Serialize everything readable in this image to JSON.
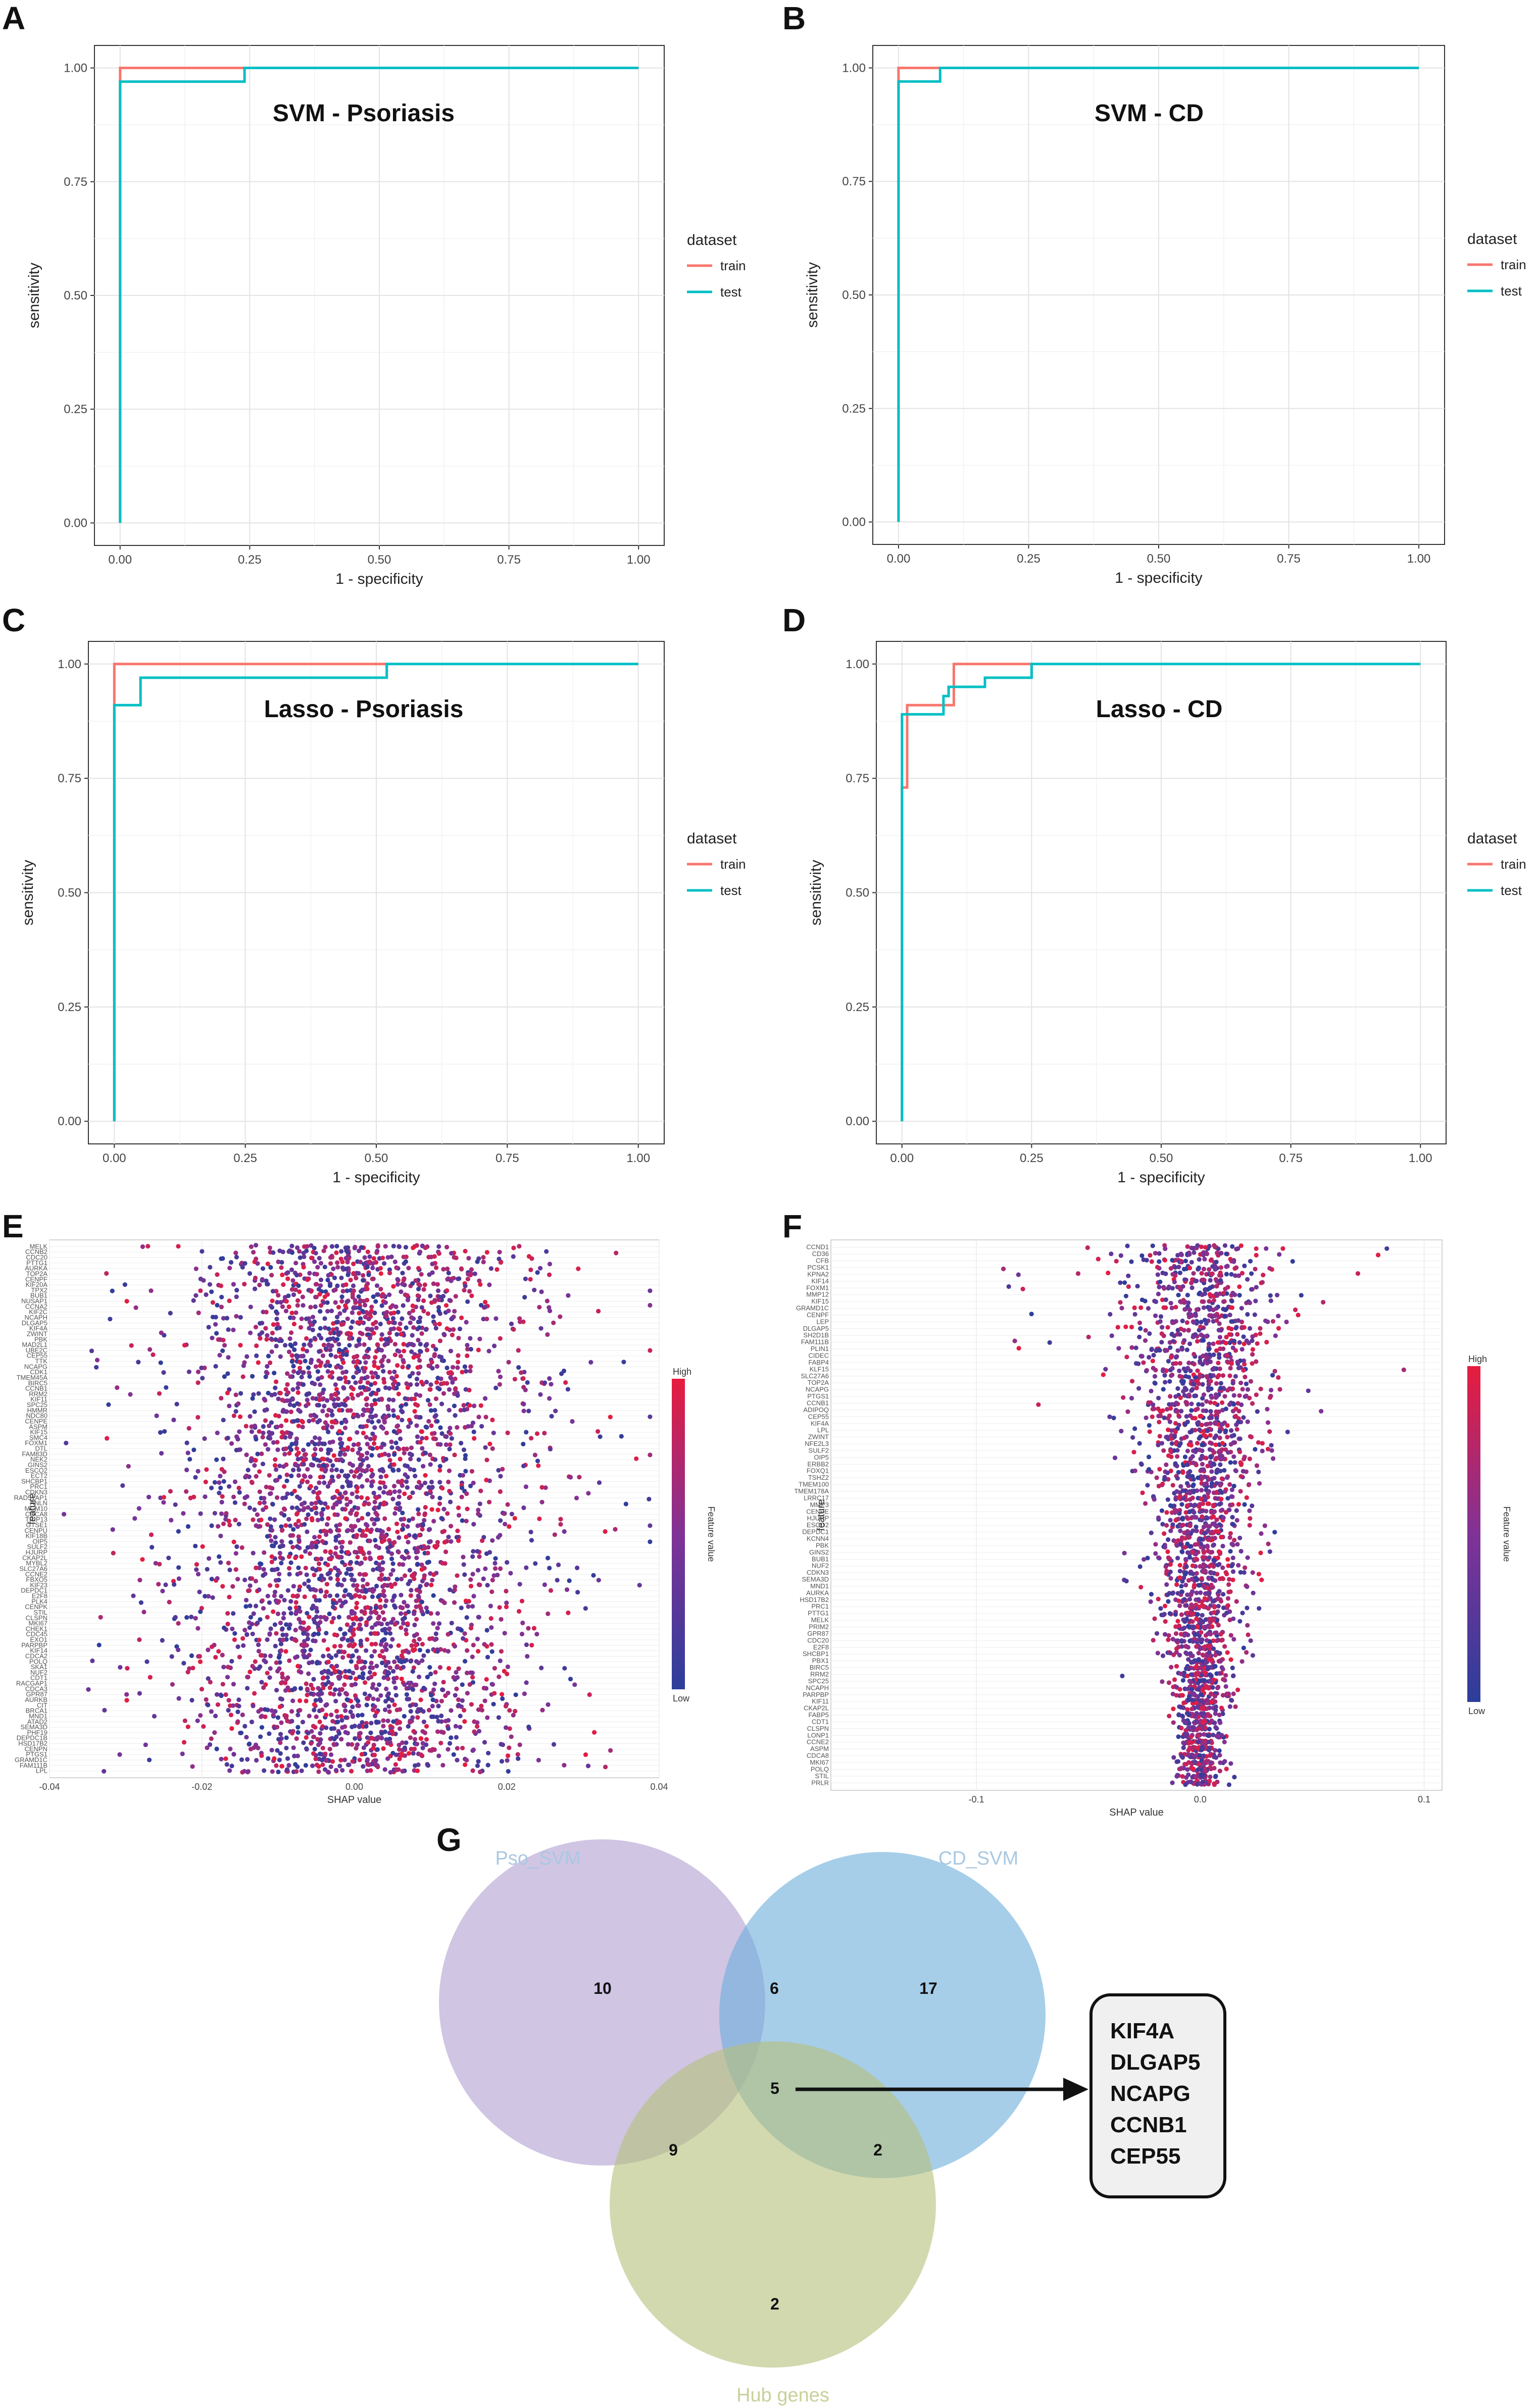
{
  "chart_data": [
    {
      "type": "line",
      "panel": "A",
      "title": "SVM - Psoriasis",
      "xlabel": "1 - specificity",
      "ylabel": "sensitivity",
      "xlim": [
        0,
        1
      ],
      "ylim": [
        0,
        1
      ],
      "xticks": [
        "0.00",
        "0.25",
        "0.50",
        "0.75",
        "1.00"
      ],
      "yticks": [
        "0.00",
        "0.25",
        "0.50",
        "0.75",
        "1.00"
      ],
      "legend_title": "dataset",
      "series": [
        {
          "name": "train",
          "color": "#f8766d",
          "points": [
            [
              0,
              0
            ],
            [
              0,
              1
            ],
            [
              1,
              1
            ]
          ]
        },
        {
          "name": "test",
          "color": "#00bfc4",
          "points": [
            [
              0,
              0
            ],
            [
              0,
              0.97
            ],
            [
              0.24,
              0.97
            ],
            [
              0.24,
              1
            ],
            [
              1,
              1
            ]
          ]
        }
      ]
    },
    {
      "type": "line",
      "panel": "B",
      "title": "SVM - CD",
      "xlabel": "1 - specificity",
      "ylabel": "sensitivity",
      "xlim": [
        0,
        1
      ],
      "ylim": [
        0,
        1
      ],
      "xticks": [
        "0.00",
        "0.25",
        "0.50",
        "0.75",
        "1.00"
      ],
      "yticks": [
        "0.00",
        "0.25",
        "0.50",
        "0.75",
        "1.00"
      ],
      "legend_title": "dataset",
      "series": [
        {
          "name": "train",
          "color": "#f8766d",
          "points": [
            [
              0,
              0
            ],
            [
              0,
              1
            ],
            [
              1,
              1
            ]
          ]
        },
        {
          "name": "test",
          "color": "#00bfc4",
          "points": [
            [
              0,
              0
            ],
            [
              0,
              0.97
            ],
            [
              0.08,
              0.97
            ],
            [
              0.08,
              1
            ],
            [
              1,
              1
            ]
          ]
        }
      ]
    },
    {
      "type": "line",
      "panel": "C",
      "title": "Lasso - Psoriasis",
      "xlabel": "1 - specificity",
      "ylabel": "sensitivity",
      "xlim": [
        0,
        1
      ],
      "ylim": [
        0,
        1
      ],
      "xticks": [
        "0.00",
        "0.25",
        "0.50",
        "0.75",
        "1.00"
      ],
      "yticks": [
        "0.00",
        "0.25",
        "0.50",
        "0.75",
        "1.00"
      ],
      "legend_title": "dataset",
      "series": [
        {
          "name": "train",
          "color": "#f8766d",
          "points": [
            [
              0,
              0
            ],
            [
              0,
              1
            ],
            [
              0.52,
              1
            ]
          ]
        },
        {
          "name": "test",
          "color": "#00bfc4",
          "points": [
            [
              0,
              0
            ],
            [
              0,
              0.91
            ],
            [
              0.05,
              0.91
            ],
            [
              0.05,
              0.97
            ],
            [
              0.52,
              0.97
            ],
            [
              0.52,
              1
            ],
            [
              1,
              1
            ]
          ]
        }
      ]
    },
    {
      "type": "line",
      "panel": "D",
      "title": "Lasso - CD",
      "xlabel": "1 - specificity",
      "ylabel": "sensitivity",
      "xlim": [
        0,
        1
      ],
      "ylim": [
        0,
        1
      ],
      "xticks": [
        "0.00",
        "0.25",
        "0.50",
        "0.75",
        "1.00"
      ],
      "yticks": [
        "0.00",
        "0.25",
        "0.50",
        "0.75",
        "1.00"
      ],
      "legend_title": "dataset",
      "series": [
        {
          "name": "train",
          "color": "#f8766d",
          "points": [
            [
              0,
              0
            ],
            [
              0,
              0.73
            ],
            [
              0.01,
              0.73
            ],
            [
              0.01,
              0.91
            ],
            [
              0.1,
              0.91
            ],
            [
              0.1,
              1
            ],
            [
              0.25,
              1
            ]
          ]
        },
        {
          "name": "test",
          "color": "#00bfc4",
          "points": [
            [
              0,
              0
            ],
            [
              0,
              0.89
            ],
            [
              0.08,
              0.89
            ],
            [
              0.08,
              0.93
            ],
            [
              0.08,
              0.93
            ],
            [
              0.09,
              0.93
            ],
            [
              0.09,
              0.95
            ],
            [
              0.16,
              0.95
            ],
            [
              0.16,
              0.97
            ],
            [
              0.25,
              0.97
            ],
            [
              0.25,
              1
            ],
            [
              1,
              1
            ]
          ]
        }
      ]
    },
    {
      "type": "scatter",
      "panel": "E",
      "title": "",
      "xlabel": "SHAP value",
      "ylabel": "feature",
      "xlim": [
        -0.04,
        0.04
      ],
      "xticks": [
        "-0.04",
        "-0.02",
        "0.00",
        "0.02",
        "0.04"
      ],
      "colorbar_title": "Feature value",
      "colorbar_high": "High",
      "colorbar_low": "Low",
      "spread": 0.013,
      "features": [
        "MELK",
        "CCNB2",
        "CDC20",
        "PTTG1",
        "AURKA",
        "TOP2A",
        "CENPF",
        "KIF20A",
        "TPX2",
        "BUB1",
        "NUSAP1",
        "CCNA2",
        "KIF2C",
        "NCAPH",
        "DLGAP5",
        "KIF4A",
        "ZWINT",
        "PBK",
        "MAD2L1",
        "UBE2C",
        "CEP55",
        "TTK",
        "NCAPG",
        "CDK1",
        "TMEM45A",
        "BIRC5",
        "CCNB1",
        "RRM2",
        "KIF11",
        "SPC25",
        "HMMR",
        "NDC80",
        "CENPE",
        "ASPM",
        "KIF15",
        "SMC4",
        "FOXM1",
        "DTL",
        "FAM83D",
        "NEK2",
        "GINS2",
        "ESCO2",
        "ECT2",
        "SHCBP1",
        "PRC1",
        "CDKN3",
        "RAD51AP1",
        "ANLN",
        "MCM10",
        "CDCA8",
        "TRIP13",
        "GTSE1",
        "CENPU",
        "KIF18B",
        "OIP5",
        "SULF2",
        "HJURP",
        "CKAP2L",
        "MYBL2",
        "SLC27A6",
        "CCNE2",
        "FBXO5",
        "KIF23",
        "DEPDC1",
        "E2F8",
        "PLK4",
        "CENPK",
        "STIL",
        "CLSPN",
        "MKI67",
        "CHEK1",
        "CDC45",
        "EXO1",
        "PARPBP",
        "KIF14",
        "CDCA2",
        "POLQ",
        "SKA1",
        "NUF2",
        "CDT1",
        "RACGAP1",
        "CDCA3",
        "GPR87",
        "AURKB",
        "CIT",
        "BRCA1",
        "MND1",
        "ATAD2",
        "SEMA3D",
        "PHF19",
        "DEPDC1B",
        "HSD17B2",
        "CENPN",
        "PTGS1",
        "GRAMD1C",
        "FAM111B",
        "LPL"
      ]
    },
    {
      "type": "scatter",
      "panel": "F",
      "title": "",
      "xlabel": "SHAP value",
      "ylabel": "feature",
      "xlim": [
        -0.165,
        0.108
      ],
      "xticks": [
        "-0.1",
        "0.0",
        "0.1"
      ],
      "xtick_values": [
        -0.1,
        0.0,
        0.1
      ],
      "colorbar_title": "Feature value",
      "colorbar_high": "High",
      "colorbar_low": "Low",
      "spread": 0.02,
      "features": [
        "CCND1",
        "CD36",
        "CFB",
        "PCSK1",
        "KPNA2",
        "KIF14",
        "FOXM1",
        "MMP12",
        "KIF15",
        "GRAMD1C",
        "CENPF",
        "LEP",
        "DLGAP5",
        "SH2D1B",
        "FAM111B",
        "PLIN1",
        "CIDEC",
        "FABP4",
        "KLF15",
        "SLC27A6",
        "TOP2A",
        "NCAPG",
        "PTGS1",
        "CCNB1",
        "ADIPOQ",
        "CEP55",
        "KIF4A",
        "LPL",
        "ZWINT",
        "NFE2L3",
        "SULF2",
        "OIP5",
        "ERBB2",
        "FOXQ1",
        "TSHZ2",
        "TMEM100",
        "TMEM178A",
        "LRRC17",
        "MMP3",
        "CENPE",
        "HJURP",
        "ESCO2",
        "DEPDC1",
        "KCNN4",
        "PBK",
        "GINS2",
        "BUB1",
        "NUF2",
        "CDKN3",
        "SEMA3D",
        "MND1",
        "AURKA",
        "HSD17B2",
        "PRC1",
        "PTTG1",
        "MELK",
        "PRIM2",
        "GPR87",
        "CDC20",
        "E2F8",
        "SHCBP1",
        "PBX1",
        "BIRC5",
        "RRM2",
        "SPC25",
        "NCAPH",
        "PARPBP",
        "KIF11",
        "CKAP2L",
        "FABP5",
        "CDT1",
        "CLSPN",
        "LONP1",
        "CCNE2",
        "ASPM",
        "CDCA8",
        "MKI67",
        "POLQ",
        "STIL",
        "PRLR"
      ]
    },
    {
      "type": "venn",
      "panel": "G",
      "sets": [
        {
          "name": "Pso_SVM",
          "color": "#b09fd0"
        },
        {
          "name": "CD_SVM",
          "color": "#6aaedb"
        },
        {
          "name": "Hub genes",
          "color": "#b5c07a"
        }
      ],
      "regions": {
        "pso_only": 10,
        "cd_only": 17,
        "hub_only": 2,
        "pso_cd": 6,
        "pso_hub": 9,
        "cd_hub": 2,
        "all": 5
      },
      "intersection_genes": [
        "KIF4A",
        "DLGAP5",
        "NCAPG",
        "CCNB1",
        "CEP55"
      ]
    }
  ],
  "panel_letters": [
    "A",
    "B",
    "C",
    "D",
    "E",
    "F",
    "G"
  ]
}
